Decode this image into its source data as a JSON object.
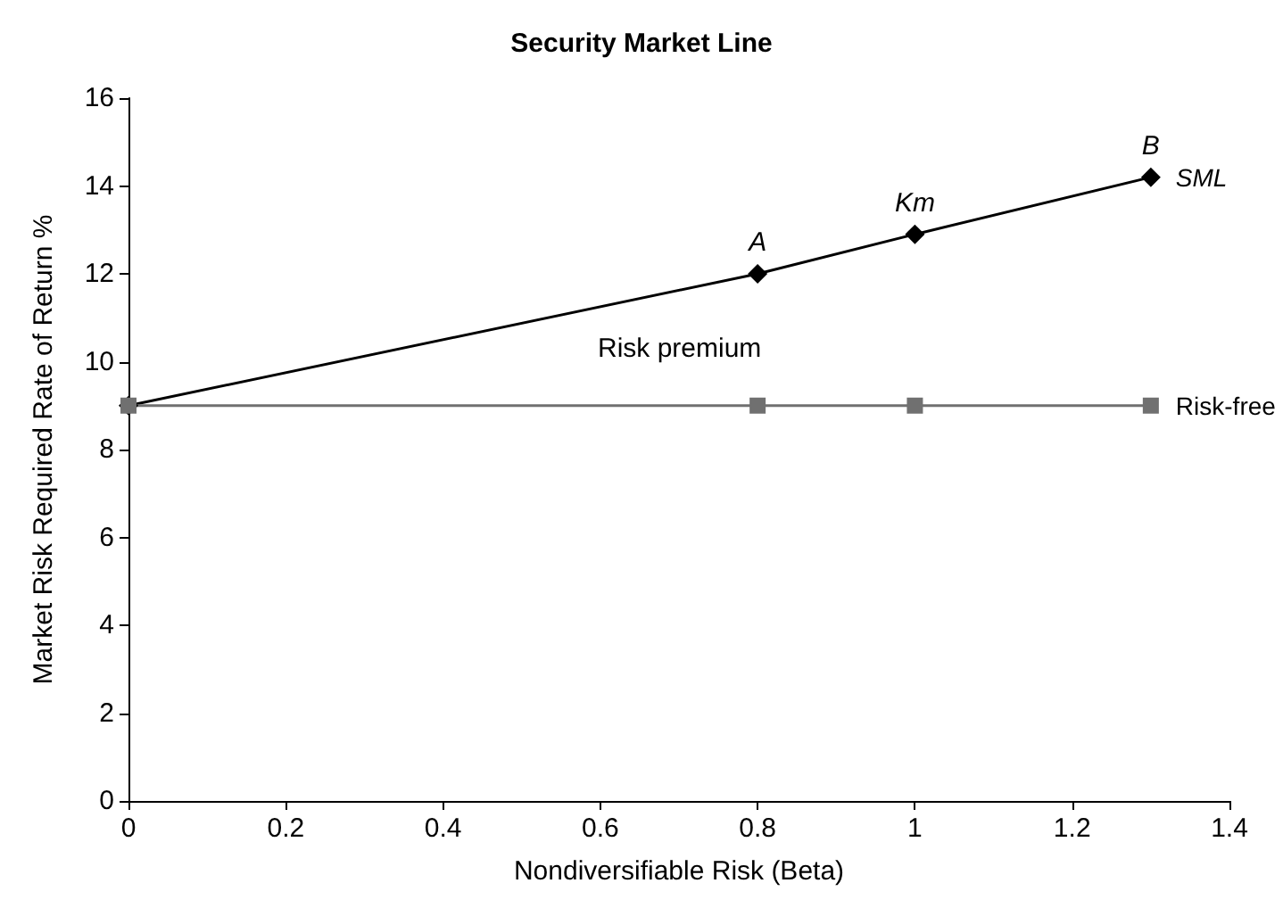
{
  "chart_data": {
    "type": "line",
    "title": "Security Market Line",
    "xlabel": "Nondiversifiable Risk (Beta)",
    "ylabel": "Market Risk Required Rate of Return %",
    "x": [
      0,
      0.8,
      1,
      1.3
    ],
    "series": [
      {
        "name": "SML",
        "color": "#000000",
        "values": [
          9,
          12,
          12.9,
          14.2
        ],
        "marker": "diamond"
      },
      {
        "name": "Risk-free",
        "color": "#707070",
        "values": [
          9,
          9,
          9,
          9
        ],
        "marker": "square"
      }
    ],
    "xlim": [
      0,
      1.4
    ],
    "xticks": [
      0,
      0.2,
      0.4,
      0.6,
      0.8,
      1,
      1.2,
      1.4
    ],
    "ylim": [
      0,
      16
    ],
    "yticks": [
      0,
      2,
      4,
      6,
      8,
      10,
      12,
      14,
      16
    ],
    "grid": false,
    "legend": false,
    "annotations": [
      {
        "text": "A",
        "x": 0.8,
        "y": 12
      },
      {
        "text": "Km",
        "x": 1,
        "y": 12.9
      },
      {
        "text": "B",
        "x": 1.3,
        "y": 14.2
      },
      "Risk premium"
    ]
  }
}
